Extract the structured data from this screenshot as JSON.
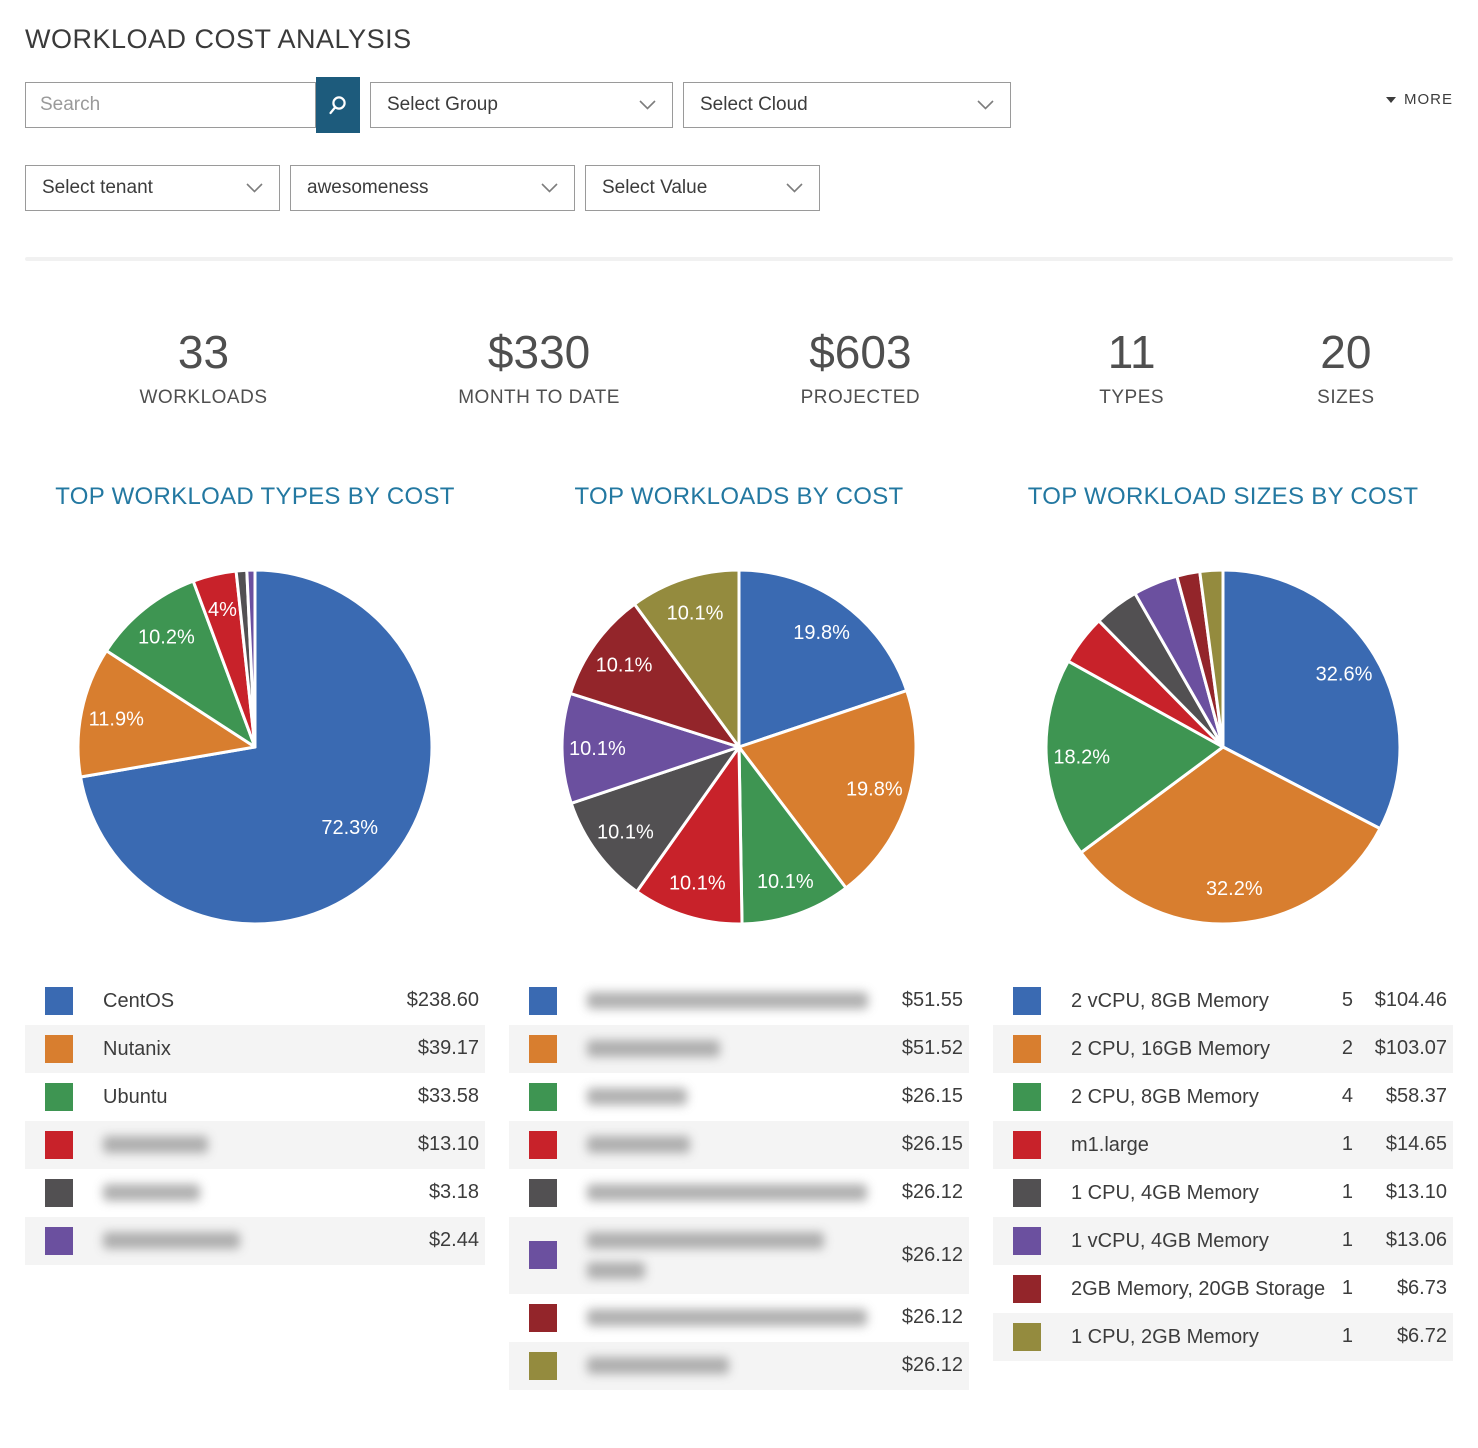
{
  "header": {
    "title": "WORKLOAD COST ANALYSIS",
    "more_label": "MORE"
  },
  "filters": {
    "search_placeholder": "Search",
    "dropdowns_row1": [
      "Select Group",
      "Select Cloud"
    ],
    "dropdowns_row2": [
      "Select tenant",
      "awesomeness",
      "Select Value"
    ]
  },
  "stats": {
    "items": [
      {
        "value": "33",
        "label": "WORKLOADS"
      },
      {
        "value": "$330",
        "label": "MONTH TO DATE"
      },
      {
        "value": "$603",
        "label": "PROJECTED"
      },
      {
        "value": "11",
        "label": "TYPES"
      },
      {
        "value": "20",
        "label": "SIZES"
      }
    ]
  },
  "colors": {
    "accent_teal": "#1d5b7c",
    "chart_title": "#2378a1",
    "palette": [
      "#3a6ab2",
      "#d87e2f",
      "#3e9552",
      "#c8222a",
      "#525052",
      "#6b509f",
      "#93252a",
      "#948b3e"
    ]
  },
  "chart_data": [
    {
      "type": "pie",
      "title": "TOP WORKLOAD TYPES BY COST",
      "legend_has_counts": false,
      "slices": [
        {
          "label": "CentOS",
          "value": 238.6,
          "cost": "$238.60",
          "percent_label": "72.3%",
          "color": "#3a6ab2"
        },
        {
          "label": "Nutanix",
          "value": 39.17,
          "cost": "$39.17",
          "percent_label": "11.9%",
          "color": "#d87e2f"
        },
        {
          "label": "Ubuntu",
          "value": 33.58,
          "cost": "$33.58",
          "percent_label": "10.2%",
          "color": "#3e9552"
        },
        {
          "label": null,
          "redacted_widths": [
            105
          ],
          "value": 13.1,
          "cost": "$13.10",
          "percent_label": "4%",
          "color": "#c8222a"
        },
        {
          "label": null,
          "redacted_widths": [
            97
          ],
          "value": 3.18,
          "cost": "$3.18",
          "percent_label": "",
          "color": "#525052"
        },
        {
          "label": null,
          "redacted_widths": [
            137
          ],
          "value": 2.44,
          "cost": "$2.44",
          "percent_label": "",
          "color": "#6b509f"
        }
      ]
    },
    {
      "type": "pie",
      "title": "TOP WORKLOADS BY COST",
      "legend_has_counts": false,
      "slices": [
        {
          "label": null,
          "redacted_widths": [
            281
          ],
          "value": 51.55,
          "cost": "$51.55",
          "percent_label": "19.8%",
          "color": "#3a6ab2"
        },
        {
          "label": null,
          "redacted_widths": [
            133
          ],
          "value": 51.52,
          "cost": "$51.52",
          "percent_label": "19.8%",
          "color": "#d87e2f"
        },
        {
          "label": null,
          "redacted_widths": [
            100
          ],
          "value": 26.15,
          "cost": "$26.15",
          "percent_label": "10.1%",
          "color": "#3e9552"
        },
        {
          "label": null,
          "redacted_widths": [
            103
          ],
          "value": 26.15,
          "cost": "$26.15",
          "percent_label": "10.1%",
          "color": "#c8222a"
        },
        {
          "label": null,
          "redacted_widths": [
            280
          ],
          "value": 26.12,
          "cost": "$26.12",
          "percent_label": "10.1%",
          "color": "#525052"
        },
        {
          "label": null,
          "redacted_widths": [
            237,
            58
          ],
          "value": 26.12,
          "cost": "$26.12",
          "percent_label": "10.1%",
          "color": "#6b509f"
        },
        {
          "label": null,
          "redacted_widths": [
            280
          ],
          "value": 26.12,
          "cost": "$26.12",
          "percent_label": "10.1%",
          "color": "#93252a"
        },
        {
          "label": null,
          "redacted_widths": [
            142
          ],
          "value": 26.12,
          "cost": "$26.12",
          "percent_label": "10.1%",
          "color": "#948b3e"
        }
      ]
    },
    {
      "type": "pie",
      "title": "TOP WORKLOAD SIZES BY COST",
      "legend_has_counts": true,
      "slices": [
        {
          "label": "2 vCPU, 8GB Memory",
          "count": "5",
          "value": 104.46,
          "cost": "$104.46",
          "percent_label": "32.6%",
          "color": "#3a6ab2"
        },
        {
          "label": "2 CPU, 16GB Memory",
          "count": "2",
          "value": 103.07,
          "cost": "$103.07",
          "percent_label": "32.2%",
          "color": "#d87e2f"
        },
        {
          "label": "2 CPU, 8GB Memory",
          "count": "4",
          "value": 58.37,
          "cost": "$58.37",
          "percent_label": "18.2%",
          "color": "#3e9552"
        },
        {
          "label": "m1.large",
          "count": "1",
          "value": 14.65,
          "cost": "$14.65",
          "percent_label": "",
          "color": "#c8222a"
        },
        {
          "label": "1 CPU, 4GB Memory",
          "count": "1",
          "value": 13.1,
          "cost": "$13.10",
          "percent_label": "",
          "color": "#525052"
        },
        {
          "label": "1 vCPU, 4GB Memory",
          "count": "1",
          "value": 13.06,
          "cost": "$13.06",
          "percent_label": "",
          "color": "#6b509f"
        },
        {
          "label": "2GB Memory, 20GB Storage",
          "count": "1",
          "value": 6.73,
          "cost": "$6.73",
          "percent_label": "",
          "color": "#93252a"
        },
        {
          "label": "1 CPU, 2GB Memory",
          "count": "1",
          "value": 6.72,
          "cost": "$6.72",
          "percent_label": "",
          "color": "#948b3e"
        }
      ]
    }
  ]
}
